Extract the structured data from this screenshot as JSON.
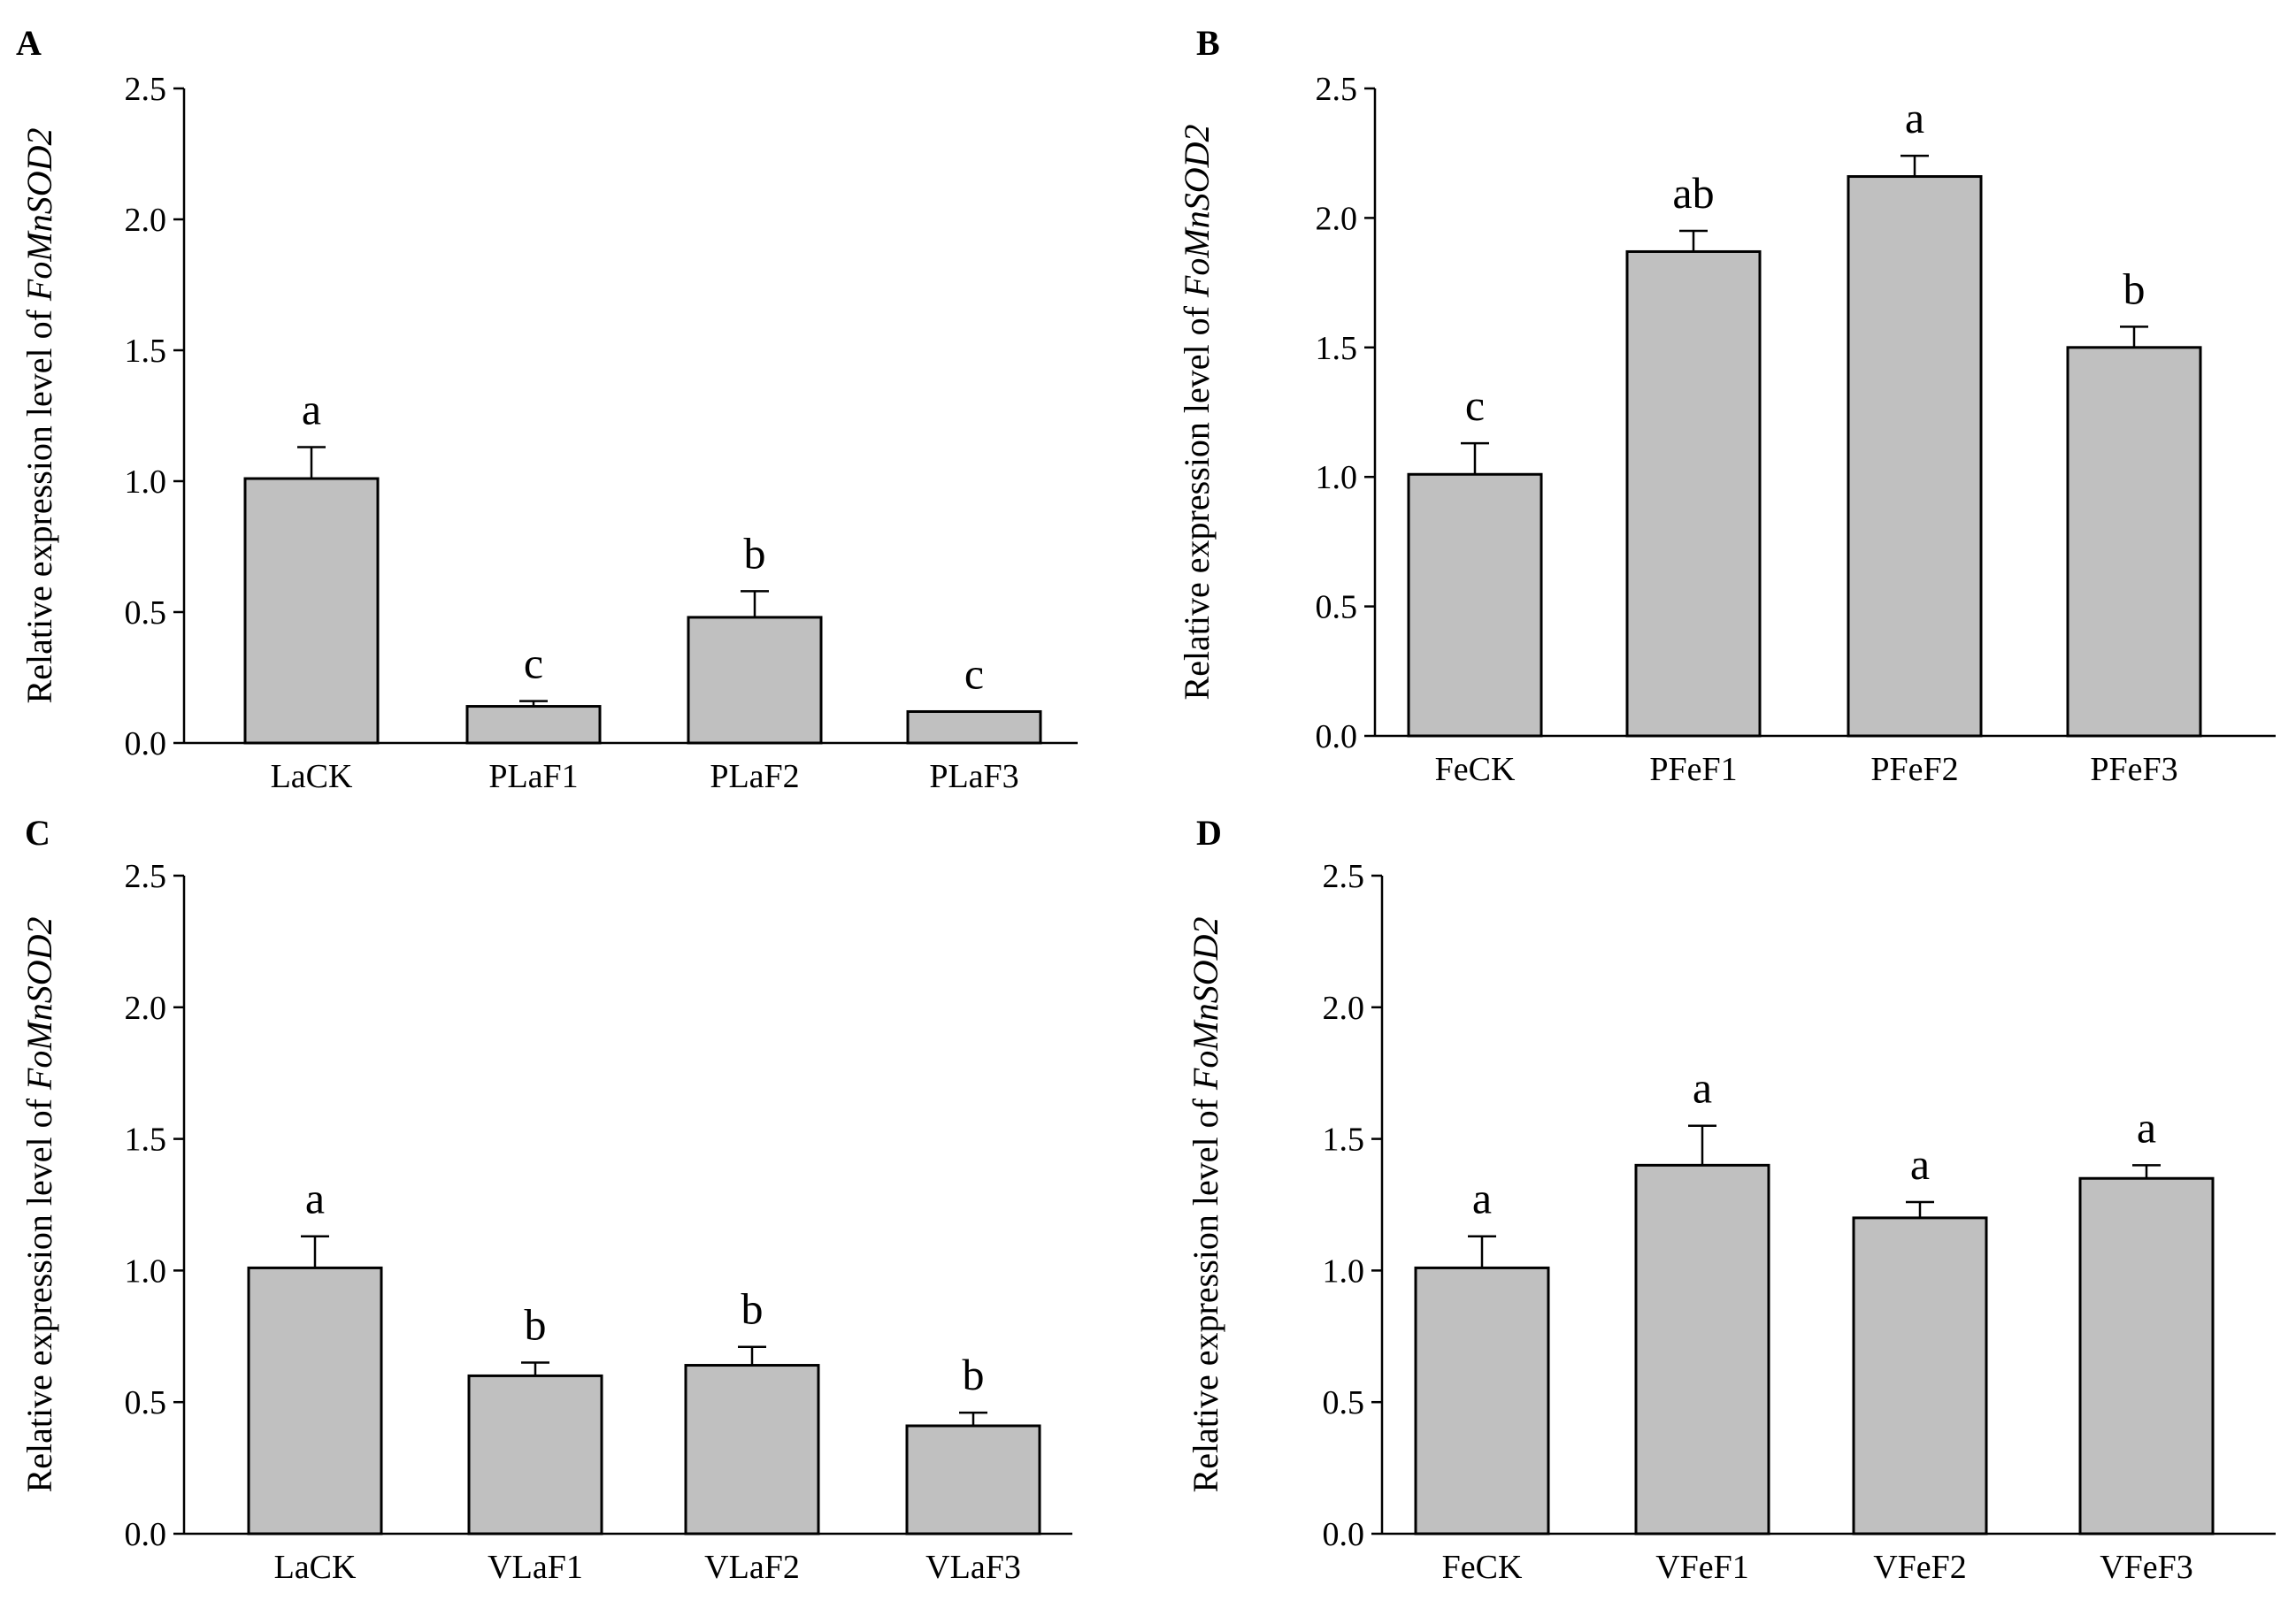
{
  "figure": {
    "panels_order": [
      "A",
      "B",
      "C",
      "D"
    ]
  },
  "chart_data": [
    {
      "type": "bar",
      "panel": "A",
      "categories": [
        "LaCK",
        "PLaF1",
        "PLaF2",
        "PLaF3"
      ],
      "values": [
        1.01,
        0.14,
        0.48,
        0.12
      ],
      "errors": [
        0.12,
        0.02,
        0.1,
        0.0
      ],
      "significance": [
        "a",
        "c",
        "b",
        "c"
      ],
      "ylabel_prefix": "Relative expression level of ",
      "ylabel_gene": "FoMnSOD2",
      "ylim": [
        0,
        2.5
      ],
      "yticks": [
        "0.0",
        "0.5",
        "1.0",
        "1.5",
        "2.0",
        "2.5"
      ],
      "bar_color": "#c0c0c0"
    },
    {
      "type": "bar",
      "panel": "B",
      "categories": [
        "FeCK",
        "PFeF1",
        "PFeF2",
        "PFeF3"
      ],
      "values": [
        1.01,
        1.87,
        2.16,
        1.5
      ],
      "errors": [
        0.12,
        0.08,
        0.08,
        0.08
      ],
      "significance": [
        "c",
        "ab",
        "a",
        "b"
      ],
      "ylabel_prefix": "Relative expression level of ",
      "ylabel_gene": "FoMnSOD2",
      "ylim": [
        0,
        2.5
      ],
      "yticks": [
        "0.0",
        "0.5",
        "1.0",
        "1.5",
        "2.0",
        "2.5"
      ],
      "bar_color": "#c0c0c0"
    },
    {
      "type": "bar",
      "panel": "C",
      "categories": [
        "LaCK",
        "VLaF1",
        "VLaF2",
        "VLaF3"
      ],
      "values": [
        1.01,
        0.6,
        0.64,
        0.41
      ],
      "errors": [
        0.12,
        0.05,
        0.07,
        0.05
      ],
      "significance": [
        "a",
        "b",
        "b",
        "b"
      ],
      "ylabel_prefix": "Relative expression level of ",
      "ylabel_gene": "FoMnSOD2",
      "ylim": [
        0,
        2.5
      ],
      "yticks": [
        "0.0",
        "0.5",
        "1.0",
        "1.5",
        "2.0",
        "2.5"
      ],
      "bar_color": "#c0c0c0"
    },
    {
      "type": "bar",
      "panel": "D",
      "categories": [
        "FeCK",
        "VFeF1",
        "VFeF2",
        "VFeF3"
      ],
      "values": [
        1.01,
        1.4,
        1.2,
        1.35
      ],
      "errors": [
        0.12,
        0.15,
        0.06,
        0.05
      ],
      "significance": [
        "a",
        "a",
        "a",
        "a"
      ],
      "ylabel_prefix": "Relative expression level of ",
      "ylabel_gene": "FoMnSOD2",
      "ylim": [
        0,
        2.5
      ],
      "yticks": [
        "0.0",
        "0.5",
        "1.0",
        "1.5",
        "2.0",
        "2.5"
      ],
      "bar_color": "#c0c0c0"
    }
  ]
}
